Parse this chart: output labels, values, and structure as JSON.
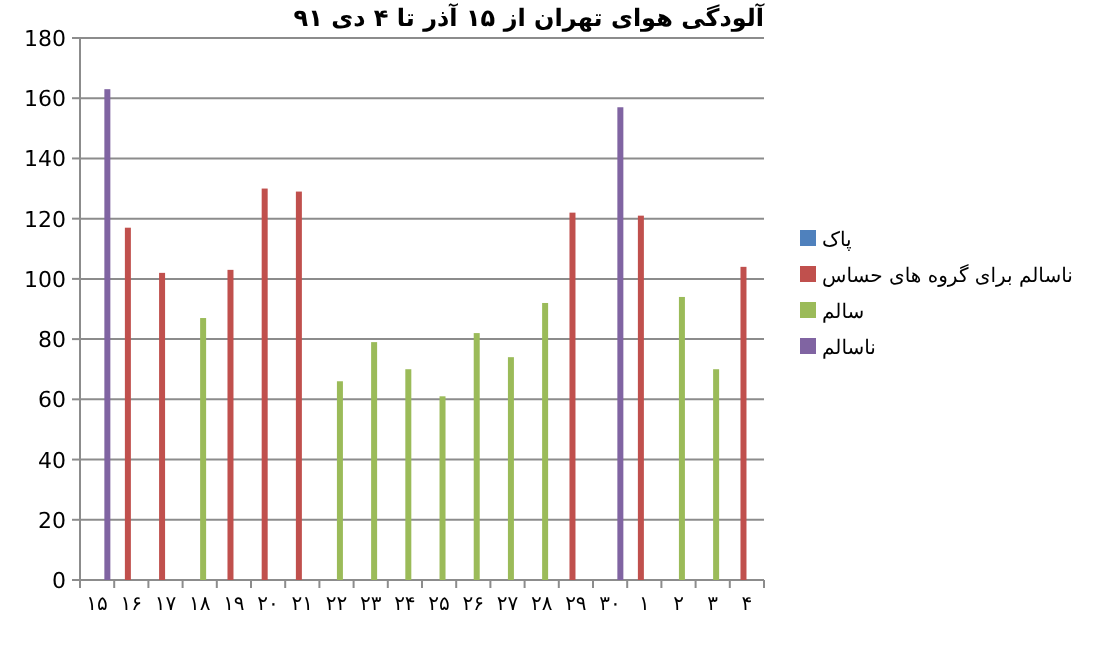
{
  "chart_data": {
    "type": "bar",
    "title": "آلودگی هوای تهران از ۱۵ آذر تا ۴ دی ۹۱",
    "categories": [
      "۱۵",
      "۱۶",
      "۱۷",
      "۱۸",
      "۱۹",
      "۲۰",
      "۲۱",
      "۲۲",
      "۲۳",
      "۲۴",
      "۲۵",
      "۲۶",
      "۲۷",
      "۲۸",
      "۲۹",
      "۳۰",
      "۱",
      "۲",
      "۳",
      "۴"
    ],
    "series": [
      {
        "name": "پاک",
        "color": "#4f81bd",
        "values": [
          null,
          null,
          null,
          null,
          null,
          null,
          null,
          null,
          null,
          null,
          null,
          null,
          null,
          null,
          null,
          null,
          null,
          null,
          null,
          null
        ]
      },
      {
        "name": "ناسالم برای گروه های حساس",
        "color": "#c0504d",
        "values": [
          null,
          117,
          102,
          null,
          103,
          130,
          129,
          null,
          null,
          null,
          null,
          null,
          null,
          null,
          122,
          null,
          121,
          null,
          null,
          104
        ]
      },
      {
        "name": "سالم",
        "color": "#9bbb59",
        "values": [
          null,
          null,
          null,
          87,
          null,
          null,
          null,
          66,
          79,
          70,
          61,
          82,
          74,
          92,
          null,
          null,
          null,
          94,
          70,
          null
        ]
      },
      {
        "name": "ناسالم",
        "color": "#8064a2",
        "values": [
          163,
          null,
          null,
          null,
          null,
          null,
          null,
          null,
          null,
          null,
          null,
          null,
          null,
          null,
          null,
          157,
          null,
          null,
          null,
          null
        ]
      }
    ],
    "ylim": [
      0,
      180
    ],
    "yticks": [
      0,
      20,
      40,
      60,
      80,
      100,
      120,
      140,
      160,
      180
    ],
    "grid": "y",
    "legend": "right"
  }
}
